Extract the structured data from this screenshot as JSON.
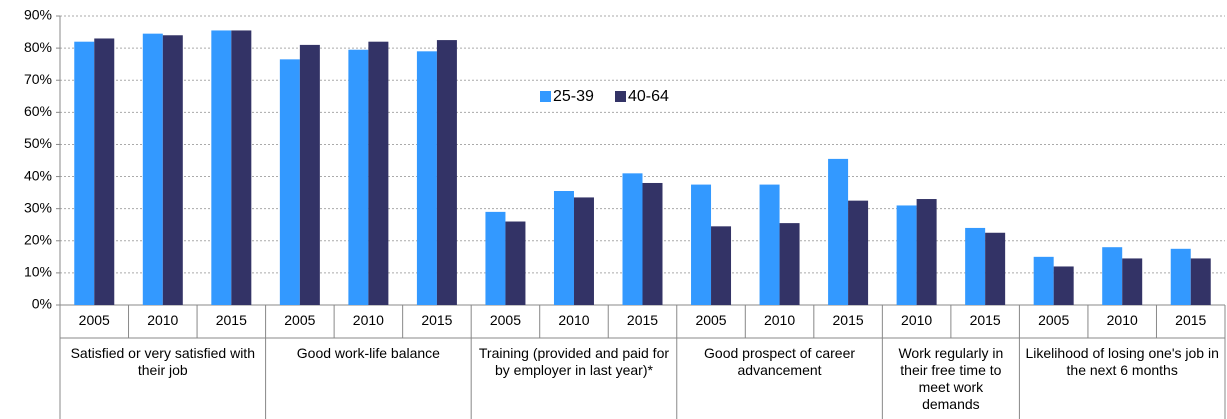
{
  "chart_data": {
    "type": "bar",
    "groups": [
      {
        "label": "Satisfied or very satisfied with their job",
        "categories": [
          "2005",
          "2010",
          "2015"
        ]
      },
      {
        "label": "Good work-life balance",
        "categories": [
          "2005",
          "2010",
          "2015"
        ]
      },
      {
        "label": "Training (provided and paid for by employer in last year)*",
        "categories": [
          "2005",
          "2010",
          "2015"
        ]
      },
      {
        "label": "Good prospect of career advancement",
        "categories": [
          "2005",
          "2010",
          "2015"
        ]
      },
      {
        "label": "Work regularly in their free time to meet work demands",
        "categories": [
          "2010",
          "2015"
        ]
      },
      {
        "label": "Likelihood of losing one's job in the next 6 months",
        "categories": [
          "2005",
          "2010",
          "2015"
        ]
      }
    ],
    "series": [
      {
        "name": "25-39",
        "color": "#3399ff",
        "values": [
          82,
          84.5,
          85.5,
          76.5,
          79.5,
          79,
          29,
          35.5,
          41,
          37.5,
          37.5,
          45.5,
          31,
          24,
          15,
          18,
          17.5
        ]
      },
      {
        "name": "40-64",
        "color": "#333366",
        "values": [
          83,
          84,
          85.5,
          81,
          82,
          82.5,
          26,
          33.5,
          38,
          24.5,
          25.5,
          32.5,
          33,
          22.5,
          12,
          14.5,
          14.5
        ]
      }
    ],
    "ylim": [
      0,
      90
    ],
    "yticks": [
      {
        "value": 0,
        "label": "0%"
      },
      {
        "value": 10,
        "label": "10%"
      },
      {
        "value": 20,
        "label": "20%"
      },
      {
        "value": 30,
        "label": "30%"
      },
      {
        "value": 40,
        "label": "40%"
      },
      {
        "value": 50,
        "label": "50%"
      },
      {
        "value": 60,
        "label": "60%"
      },
      {
        "value": 70,
        "label": "70%"
      },
      {
        "value": 80,
        "label": "80%"
      },
      {
        "value": 90,
        "label": "90%"
      }
    ],
    "grid": true,
    "legend": "center"
  }
}
